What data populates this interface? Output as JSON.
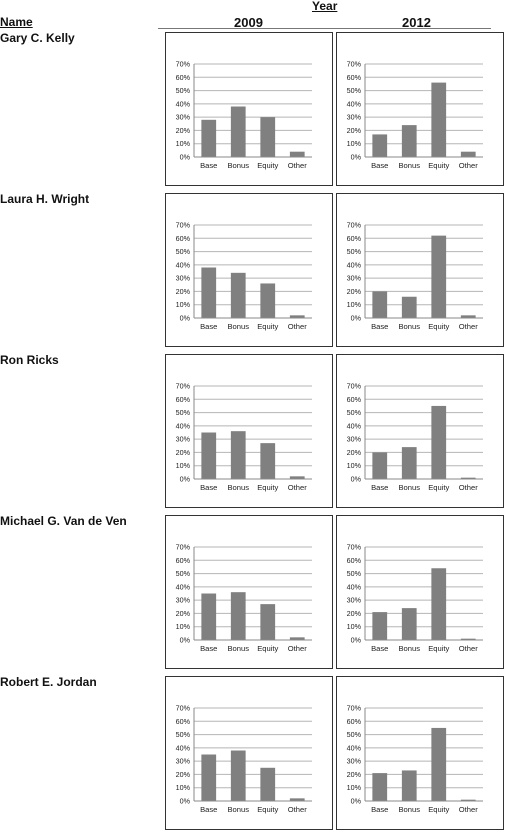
{
  "header": {
    "year_label": "Year",
    "name_label": "Name",
    "columns": [
      "2009",
      "2012"
    ]
  },
  "chart_data": [
    {
      "type": "bar",
      "executive": "Gary C. Kelly",
      "year": "2009",
      "categories": [
        "Base",
        "Bonus",
        "Equity",
        "Other"
      ],
      "values": [
        28,
        38,
        30,
        4
      ],
      "unit": "%",
      "ylim": [
        0,
        70
      ],
      "yticks": [
        "0%",
        "10%",
        "20%",
        "30%",
        "40%",
        "50%",
        "60%",
        "70%"
      ],
      "grid": true,
      "bar_color": "#808080"
    },
    {
      "type": "bar",
      "executive": "Gary C. Kelly",
      "year": "2012",
      "categories": [
        "Base",
        "Bonus",
        "Equity",
        "Other"
      ],
      "values": [
        17,
        24,
        56,
        4
      ],
      "unit": "%",
      "ylim": [
        0,
        70
      ],
      "yticks": [
        "0%",
        "10%",
        "20%",
        "30%",
        "40%",
        "50%",
        "60%",
        "70%"
      ],
      "grid": true,
      "bar_color": "#808080"
    },
    {
      "type": "bar",
      "executive": "Laura H. Wright",
      "year": "2009",
      "categories": [
        "Base",
        "Bonus",
        "Equity",
        "Other"
      ],
      "values": [
        38,
        34,
        26,
        2
      ],
      "unit": "%",
      "ylim": [
        0,
        70
      ],
      "yticks": [
        "0%",
        "10%",
        "20%",
        "30%",
        "40%",
        "50%",
        "60%",
        "70%"
      ],
      "grid": true,
      "bar_color": "#808080"
    },
    {
      "type": "bar",
      "executive": "Laura H. Wright",
      "year": "2012",
      "categories": [
        "Base",
        "Bonus",
        "Equity",
        "Other"
      ],
      "values": [
        20,
        16,
        62,
        2
      ],
      "unit": "%",
      "ylim": [
        0,
        70
      ],
      "yticks": [
        "0%",
        "10%",
        "20%",
        "30%",
        "40%",
        "50%",
        "60%",
        "70%"
      ],
      "grid": true,
      "bar_color": "#808080"
    },
    {
      "type": "bar",
      "executive": "Ron Ricks",
      "year": "2009",
      "categories": [
        "Base",
        "Bonus",
        "Equity",
        "Other"
      ],
      "values": [
        35,
        36,
        27,
        2
      ],
      "unit": "%",
      "ylim": [
        0,
        70
      ],
      "yticks": [
        "0%",
        "10%",
        "20%",
        "30%",
        "40%",
        "50%",
        "60%",
        "70%"
      ],
      "grid": true,
      "bar_color": "#808080"
    },
    {
      "type": "bar",
      "executive": "Ron Ricks",
      "year": "2012",
      "categories": [
        "Base",
        "Bonus",
        "Equity",
        "Other"
      ],
      "values": [
        20,
        24,
        55,
        1
      ],
      "unit": "%",
      "ylim": [
        0,
        70
      ],
      "yticks": [
        "0%",
        "10%",
        "20%",
        "30%",
        "40%",
        "50%",
        "60%",
        "70%"
      ],
      "grid": true,
      "bar_color": "#808080"
    },
    {
      "type": "bar",
      "executive": "Michael G. Van de Ven",
      "year": "2009",
      "categories": [
        "Base",
        "Bonus",
        "Equity",
        "Other"
      ],
      "values": [
        35,
        36,
        27,
        2
      ],
      "unit": "%",
      "ylim": [
        0,
        70
      ],
      "yticks": [
        "0%",
        "10%",
        "20%",
        "30%",
        "40%",
        "50%",
        "60%",
        "70%"
      ],
      "grid": true,
      "bar_color": "#808080"
    },
    {
      "type": "bar",
      "executive": "Michael G. Van de Ven",
      "year": "2012",
      "categories": [
        "Base",
        "Bonus",
        "Equity",
        "Other"
      ],
      "values": [
        21,
        24,
        54,
        1
      ],
      "unit": "%",
      "ylim": [
        0,
        70
      ],
      "yticks": [
        "0%",
        "10%",
        "20%",
        "30%",
        "40%",
        "50%",
        "60%",
        "70%"
      ],
      "grid": true,
      "bar_color": "#808080"
    },
    {
      "type": "bar",
      "executive": "Robert E. Jordan",
      "year": "2009",
      "categories": [
        "Base",
        "Bonus",
        "Equity",
        "Other"
      ],
      "values": [
        35,
        38,
        25,
        2
      ],
      "unit": "%",
      "ylim": [
        0,
        70
      ],
      "yticks": [
        "0%",
        "10%",
        "20%",
        "30%",
        "40%",
        "50%",
        "60%",
        "70%"
      ],
      "grid": true,
      "bar_color": "#808080"
    },
    {
      "type": "bar",
      "executive": "Robert E. Jordan",
      "year": "2012",
      "categories": [
        "Base",
        "Bonus",
        "Equity",
        "Other"
      ],
      "values": [
        21,
        23,
        55,
        1
      ],
      "unit": "%",
      "ylim": [
        0,
        70
      ],
      "yticks": [
        "0%",
        "10%",
        "20%",
        "30%",
        "40%",
        "50%",
        "60%",
        "70%"
      ],
      "grid": true,
      "bar_color": "#808080"
    }
  ]
}
